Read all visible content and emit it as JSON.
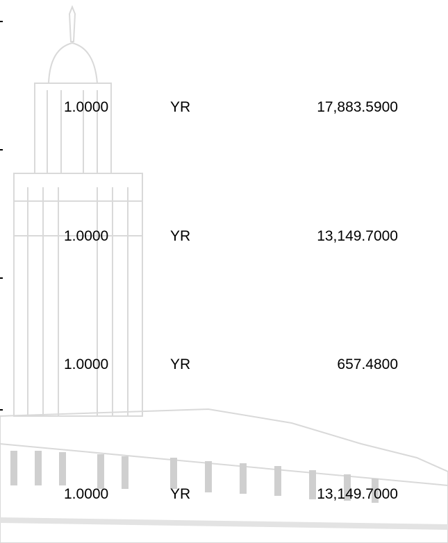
{
  "table": {
    "rows": [
      [
        "1.0000",
        "YR",
        "17,883.5900"
      ],
      [
        "1.0000",
        "YR",
        "13,149.7000"
      ],
      [
        "1.0000",
        "YR",
        "657.4800"
      ],
      [
        "1.0000",
        "YR",
        "13,149.7000"
      ]
    ]
  }
}
